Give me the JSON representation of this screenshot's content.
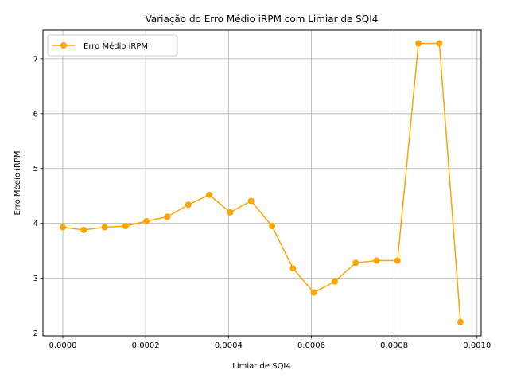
{
  "chart_data": {
    "type": "line",
    "title": "Variação do Erro Médio iRPM com Limiar de SQI4",
    "xlabel": "Limiar de SQI4",
    "ylabel": "Erro Médio iRPM",
    "xlim": [
      -4.8e-05,
      0.00101
    ],
    "ylim": [
      1.95,
      7.52
    ],
    "xticks": [
      0.0,
      0.0002,
      0.0004,
      0.0006,
      0.0008,
      0.001
    ],
    "xtick_labels": [
      "0.0000",
      "0.0002",
      "0.0004",
      "0.0006",
      "0.0008",
      "0.0010"
    ],
    "yticks": [
      2,
      3,
      4,
      5,
      6,
      7
    ],
    "ytick_labels": [
      "2",
      "3",
      "4",
      "5",
      "6",
      "7"
    ],
    "grid": true,
    "legend_position": "top-left",
    "series": [
      {
        "name": "Erro Médio iRPM",
        "color": "#ffa500",
        "marker": "circle",
        "x": [
          0.0,
          5.05e-05,
          0.000101,
          0.0001515,
          0.000202,
          0.0002525,
          0.000303,
          0.0003535,
          0.000404,
          0.0004545,
          0.000505,
          0.0005555,
          0.000606,
          0.0006565,
          0.000707,
          0.0007575,
          0.000808,
          0.0008585,
          0.000909,
          0.00096
        ],
        "y": [
          3.93,
          3.88,
          3.93,
          3.95,
          4.04,
          4.12,
          4.34,
          4.52,
          4.2,
          4.41,
          3.95,
          3.18,
          2.74,
          2.94,
          3.28,
          3.32,
          3.32,
          7.28,
          7.28,
          2.2
        ]
      }
    ]
  }
}
